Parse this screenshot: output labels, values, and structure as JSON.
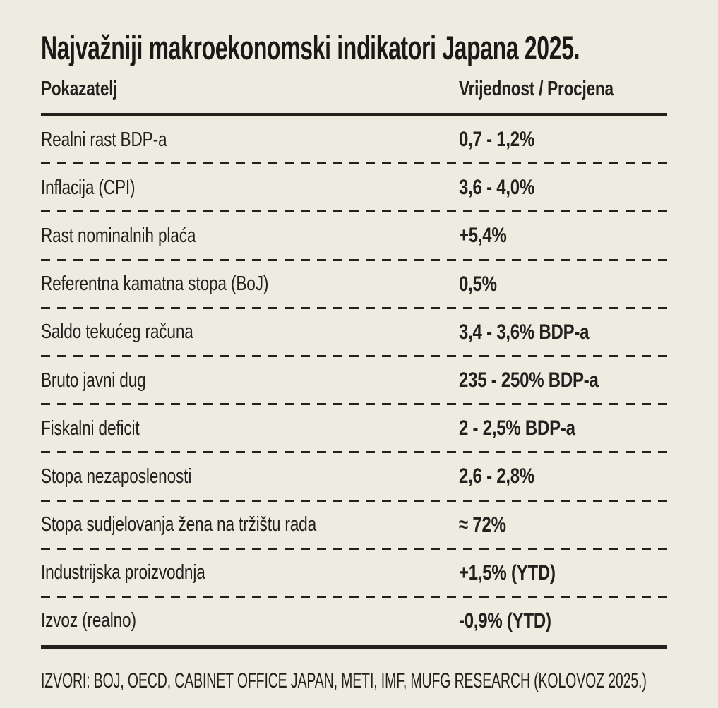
{
  "page": {
    "title": "Najvažniji makroekonomski indikatori Japana 2025.",
    "source": "IZVORI: BOJ, OECD, CABINET OFFICE JAPAN, METI, IMF, MUFG RESEARCH (KOLOVOZ 2025.)"
  },
  "table": {
    "headers": {
      "indicator": "Pokazatelj",
      "value": "Vrijednost / Procjena"
    },
    "rows": [
      {
        "label": "Realni rast BDP-a",
        "value": "0,7 - 1,2%"
      },
      {
        "label": "Inflacija (CPI)",
        "value": "3,6 - 4,0%"
      },
      {
        "label": "Rast nominalnih plaća",
        "value": "+5,4%"
      },
      {
        "label": "Referentna kamatna stopa (BoJ)",
        "value": "0,5%"
      },
      {
        "label": "Saldo tekućeg računa",
        "value": "3,4 - 3,6% BDP-a"
      },
      {
        "label": "Bruto javni dug",
        "value": "235 - 250% BDP-a"
      },
      {
        "label": "Fiskalni deficit",
        "value": "2 - 2,5% BDP-a"
      },
      {
        "label": "Stopa nezaposlenosti",
        "value": "2,6 - 2,8%"
      },
      {
        "label": "Stopa sudjelovanja žena na tržištu rada",
        "value": "≈ 72%"
      },
      {
        "label": "Industrijska proizvodnja",
        "value": "+1,5% (YTD)"
      },
      {
        "label": "Izvoz (realno)",
        "value": "-0,9% (YTD)"
      }
    ]
  },
  "colors": {
    "background": "#eeece1",
    "ink": "#23211d"
  },
  "chart_data": {
    "type": "table",
    "title": "Najvažniji makroekonomski indikatori Japana 2025.",
    "columns": [
      "Pokazatelj",
      "Vrijednost / Procjena"
    ],
    "rows": [
      [
        "Realni rast BDP-a",
        "0,7 - 1,2%"
      ],
      [
        "Inflacija (CPI)",
        "3,6 - 4,0%"
      ],
      [
        "Rast nominalnih plaća",
        "+5,4%"
      ],
      [
        "Referentna kamatna stopa (BoJ)",
        "0,5%"
      ],
      [
        "Saldo tekućeg računa",
        "3,4 - 3,6% BDP-a"
      ],
      [
        "Bruto javni dug",
        "235 - 250% BDP-a"
      ],
      [
        "Fiskalni deficit",
        "2 - 2,5% BDP-a"
      ],
      [
        "Stopa nezaposlenosti",
        "2,6 - 2,8%"
      ],
      [
        "Stopa sudjelovanja žena na tržištu rada",
        "≈ 72%"
      ],
      [
        "Industrijska proizvodnja",
        "+1,5% (YTD)"
      ],
      [
        "Izvoz (realno)",
        "-0,9% (YTD)"
      ]
    ],
    "source": "IZVORI: BOJ, OECD, CABINET OFFICE JAPAN, METI, IMF, MUFG RESEARCH (KOLOVOZ 2025.)",
    "layout": {
      "grid": "dashed-row-separators",
      "rules": "thick-top-and-bottom"
    }
  }
}
